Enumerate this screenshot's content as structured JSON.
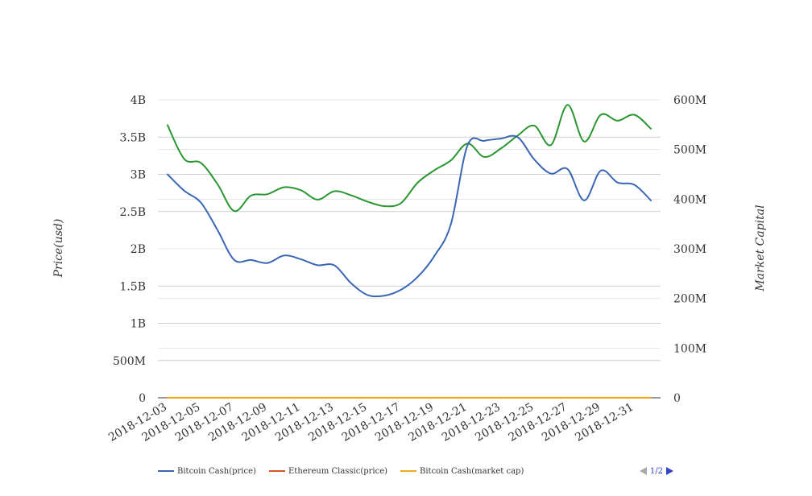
{
  "chart_data": {
    "type": "line",
    "x": [
      "2018-12-03",
      "2018-12-04",
      "2018-12-05",
      "2018-12-06",
      "2018-12-07",
      "2018-12-08",
      "2018-12-09",
      "2018-12-10",
      "2018-12-11",
      "2018-12-12",
      "2018-12-13",
      "2018-12-14",
      "2018-12-15",
      "2018-12-16",
      "2018-12-17",
      "2018-12-18",
      "2018-12-19",
      "2018-12-20",
      "2018-12-21",
      "2018-12-22",
      "2018-12-23",
      "2018-12-24",
      "2018-12-25",
      "2018-12-26",
      "2018-12-27",
      "2018-12-28",
      "2018-12-29",
      "2018-12-30",
      "2018-12-31",
      "2019-01-01"
    ],
    "x_tick_labels": [
      "2018-12-03",
      "2018-12-05",
      "2018-12-07",
      "2018-12-09",
      "2018-12-11",
      "2018-12-13",
      "2018-12-15",
      "2018-12-17",
      "2018-12-19",
      "2018-12-21",
      "2018-12-23",
      "2018-12-25",
      "2018-12-27",
      "2018-12-29",
      "2018-12-31"
    ],
    "y_left": {
      "title": "Price(usd)",
      "ylim": [
        0,
        4000000000
      ],
      "ticks": [
        0,
        500000000,
        1000000000,
        1500000000,
        2000000000,
        2500000000,
        3000000000,
        3500000000,
        4000000000
      ],
      "tick_labels": [
        "0",
        "500M",
        "1B",
        "1.5B",
        "2B",
        "2.5B",
        "3B",
        "3.5B",
        "4B"
      ]
    },
    "y_right": {
      "title": "Market Capital",
      "ylim": [
        0,
        600000000
      ],
      "ticks": [
        0,
        100000000,
        200000000,
        300000000,
        400000000,
        500000000,
        600000000
      ],
      "tick_labels": [
        "0",
        "100M",
        "200M",
        "300M",
        "400M",
        "500M",
        "600M"
      ]
    },
    "series": [
      {
        "name": "Bitcoin Cash(price)",
        "color": "#3a66b5",
        "axis": "left",
        "values": [
          3000000000,
          2780000000,
          2620000000,
          2250000000,
          1850000000,
          1850000000,
          1810000000,
          1910000000,
          1860000000,
          1780000000,
          1780000000,
          1540000000,
          1380000000,
          1370000000,
          1450000000,
          1620000000,
          1900000000,
          2330000000,
          3390000000,
          3450000000,
          3480000000,
          3500000000,
          3200000000,
          3010000000,
          3070000000,
          2650000000,
          3050000000,
          2890000000,
          2860000000,
          2650000000
        ]
      },
      {
        "name": "Ethereum Classic(price)",
        "color": "#d2561f",
        "axis": "left",
        "values": [
          200000,
          200000,
          200000,
          200000,
          200000,
          200000,
          200000,
          200000,
          200000,
          200000,
          200000,
          200000,
          200000,
          200000,
          200000,
          200000,
          200000,
          200000,
          200000,
          200000,
          200000,
          200000,
          200000,
          200000,
          200000,
          200000,
          200000,
          200000,
          200000,
          200000
        ]
      },
      {
        "name": "Bitcoin Cash(market cap)",
        "color": "#f0a81c",
        "axis": "left",
        "values": [
          1000000,
          1000000,
          1000000,
          1000000,
          1000000,
          1000000,
          1000000,
          1000000,
          1000000,
          1000000,
          1000000,
          1000000,
          1000000,
          1000000,
          1000000,
          1000000,
          1000000,
          1000000,
          1000000,
          1000000,
          1000000,
          1000000,
          1000000,
          1000000,
          1000000,
          1000000,
          1000000,
          1000000,
          1000000,
          1000000
        ]
      },
      {
        "color": "#2a9630",
        "axis": "right",
        "legend_visible": false,
        "values": [
          549000000,
          481000000,
          473000000,
          430000000,
          376000000,
          407000000,
          410000000,
          424000000,
          418000000,
          399000000,
          416000000,
          408000000,
          395000000,
          386000000,
          392000000,
          433000000,
          458000000,
          478000000,
          512000000,
          485000000,
          502000000,
          528000000,
          548000000,
          509000000,
          590000000,
          516000000,
          570000000,
          558000000,
          570000000,
          542000000
        ]
      }
    ],
    "grid": true,
    "legend_position": "bottom",
    "legend_pager": {
      "current": 1,
      "total": 2
    }
  },
  "legend_pager_text": "1/2"
}
